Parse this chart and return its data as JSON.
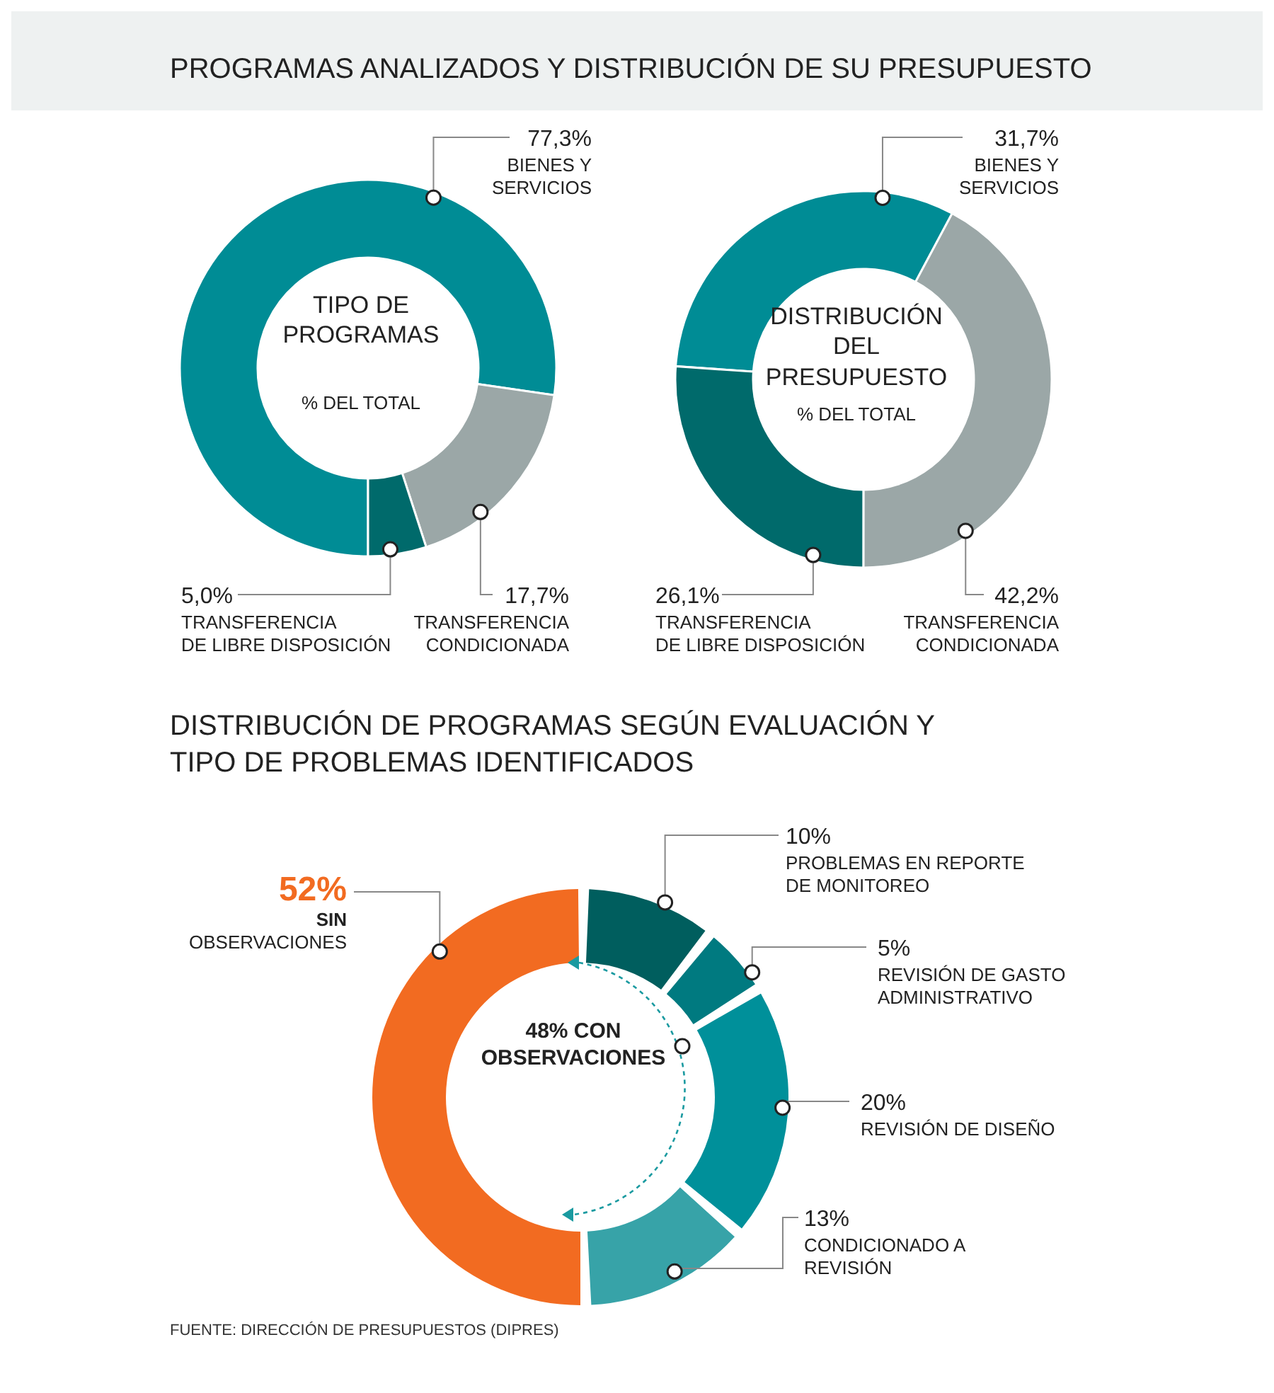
{
  "chart_data": [
    {
      "type": "donut",
      "title": "PROGRAMAS ANALIZADOS Y DISTRIBUCIÓN DE SU PRESUPUESTO",
      "categories": [
        "BIENES Y SERVICIOS",
        "TRANSFERENCIA CONDICIONADA",
        "TRANSFERENCIA DE LIBRE DISPOSICIÓN"
      ],
      "values": [
        77.3,
        17.7,
        5.0
      ],
      "value_labels": [
        "77,3%",
        "17,7%",
        "5,0%"
      ],
      "colors": [
        "#008c95",
        "#9ba7a7",
        "#006a6b"
      ],
      "annotations": [
        "TIPO DE PROGRAMAS",
        "% DEL TOTAL"
      ]
    },
    {
      "type": "donut",
      "categories": [
        "BIENES Y SERVICIOS",
        "TRANSFERENCIA CONDICIONADA",
        "TRANSFERENCIA DE LIBRE DISPOSICIÓN"
      ],
      "values": [
        31.7,
        42.2,
        26.1
      ],
      "value_labels": [
        "31,7%",
        "42,2%",
        "26,1%"
      ],
      "colors": [
        "#008c95",
        "#9ba7a7",
        "#006a6b"
      ],
      "annotations": [
        "DISTRIBUCIÓN DEL PRESUPUESTO",
        "% DEL TOTAL"
      ]
    },
    {
      "type": "donut",
      "title": "DISTRIBUCIÓN DE PROGRAMAS SEGÚN EVALUACIÓN Y TIPO DE PROBLEMAS IDENTIFICADOS",
      "categories": [
        "SIN OBSERVACIONES",
        "PROBLEMAS EN REPORTE DE MONITOREO",
        "REVISIÓN DE GASTO ADMINISTRATIVO",
        "REVISIÓN DE DISEÑO",
        "CONDICIONADO A REVISIÓN"
      ],
      "values": [
        52,
        10,
        5,
        20,
        13
      ],
      "value_labels": [
        "52%",
        "10%",
        "5%",
        "20%",
        "13%"
      ],
      "colors": [
        "#f26b21",
        "#005e5e",
        "#007a80",
        "#00909a",
        "#37a3a8"
      ],
      "annotations": [
        "48% CON OBSERVACIONES",
        "FUENTE: DIRECCIÓN DE PRESUPUESTOS (DIPRES)"
      ]
    }
  ]
}
